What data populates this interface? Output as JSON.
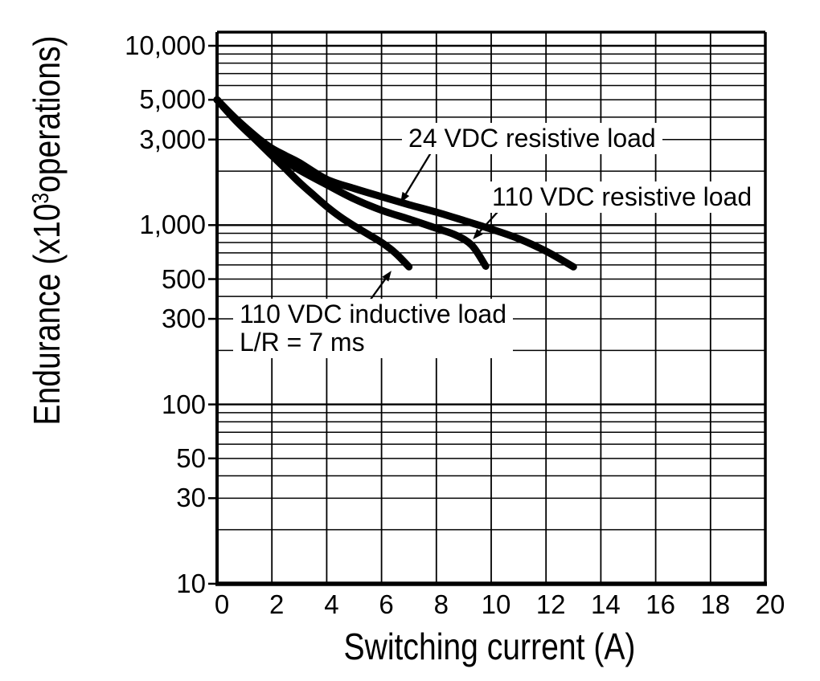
{
  "page": {
    "background": "#ffffff",
    "ink_color": "#000000"
  },
  "chart_data": {
    "type": "line",
    "title": "",
    "xlabel": "Switching current (A)",
    "ylabel": "Endurance (x10³operations)",
    "ylabel_parts": {
      "prefix": "Endurance (x10",
      "sup": "3",
      "suffix": "operations)"
    },
    "xlim": [
      0,
      20
    ],
    "ylim": [
      10,
      10000
    ],
    "y_scale": "log",
    "grid_on": true,
    "legend_position": "annotated-on-chart",
    "line_color": "#000000",
    "x_axis": {
      "tick_step": 2,
      "ticks": [
        0,
        2,
        4,
        6,
        8,
        10,
        12,
        14,
        16,
        18,
        20
      ],
      "tick_labels": [
        "0",
        "2",
        "4",
        "6",
        "8",
        "10",
        "12",
        "14",
        "16",
        "18",
        "20"
      ]
    },
    "y_axis": {
      "scale": "log",
      "gridlines": "all-log-subdivisions-10-to-10000",
      "tick_labels": [
        {
          "value": 10000,
          "label": "10,000"
        },
        {
          "value": 5000,
          "label": "5,000"
        },
        {
          "value": 3000,
          "label": "3,000"
        },
        {
          "value": 1000,
          "label": "1,000"
        },
        {
          "value": 500,
          "label": "500"
        },
        {
          "value": 300,
          "label": "300"
        },
        {
          "value": 100,
          "label": "100"
        },
        {
          "value": 50,
          "label": "50"
        },
        {
          "value": 30,
          "label": "30"
        },
        {
          "value": 10,
          "label": "10"
        }
      ]
    },
    "series": [
      {
        "name": "24 VDC resistive load",
        "points": [
          [
            0,
            5000
          ],
          [
            0.7,
            3900
          ],
          [
            1.5,
            3050
          ],
          [
            2,
            2680
          ],
          [
            2.5,
            2440
          ],
          [
            3,
            2230
          ],
          [
            4,
            1800
          ],
          [
            5,
            1600
          ],
          [
            6,
            1440
          ],
          [
            7,
            1300
          ],
          [
            8,
            1180
          ],
          [
            9,
            1060
          ],
          [
            10,
            950
          ],
          [
            11,
            840
          ],
          [
            12,
            715
          ],
          [
            13,
            585
          ]
        ]
      },
      {
        "name": "110 VDC resistive load",
        "points": [
          [
            0,
            5000
          ],
          [
            0.7,
            3850
          ],
          [
            1.5,
            2980
          ],
          [
            2,
            2580
          ],
          [
            2.5,
            2280
          ],
          [
            3,
            2030
          ],
          [
            4,
            1680
          ],
          [
            5,
            1400
          ],
          [
            6,
            1210
          ],
          [
            7,
            1080
          ],
          [
            8,
            960
          ],
          [
            8.7,
            880
          ],
          [
            9.3,
            770
          ],
          [
            9.8,
            590
          ]
        ]
      },
      {
        "name": "110 VDC inductive load L/R = 7 ms",
        "points": [
          [
            0,
            5000
          ],
          [
            0.7,
            3800
          ],
          [
            1.5,
            2900
          ],
          [
            2,
            2440
          ],
          [
            2.5,
            2060
          ],
          [
            3,
            1730
          ],
          [
            3.5,
            1480
          ],
          [
            4,
            1270
          ],
          [
            4.5,
            1110
          ],
          [
            5,
            990
          ],
          [
            5.5,
            890
          ],
          [
            6,
            800
          ],
          [
            6.5,
            700
          ],
          [
            7,
            585
          ]
        ]
      }
    ],
    "annotations": [
      {
        "lines": [
          "24 VDC resistive load"
        ],
        "anchor": [
          6.98,
          3640
        ],
        "arrow_from": [
          7.82,
          2560
        ],
        "arrow_to": [
          6.69,
          1330
        ]
      },
      {
        "lines": [
          "110 VDC resistive load"
        ],
        "anchor": [
          10.03,
          1715
        ],
        "arrow_from": [
          10.55,
          1339
        ],
        "arrow_to": [
          9.33,
          833
        ]
      },
      {
        "lines": [
          "110 VDC inductive load",
          "L/R = 7 ms"
        ],
        "anchor": [
          0.82,
          380
        ],
        "arrow_from": [
          5.6,
          385
        ],
        "arrow_to": [
          6.36,
          557
        ]
      }
    ]
  }
}
